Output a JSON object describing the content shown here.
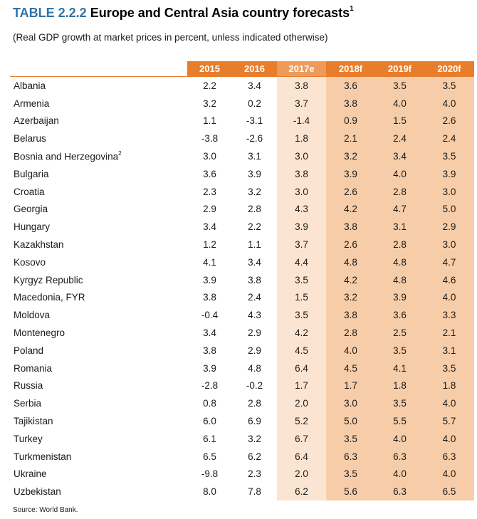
{
  "header": {
    "table_number": "TABLE 2.2.2",
    "title": "Europe and Central Asia country forecasts",
    "title_footnote": "1",
    "subtitle": "(Real GDP growth at market prices in percent, unless indicated otherwise)"
  },
  "table": {
    "columns": [
      "2015",
      "2016",
      "2017e",
      "2018f",
      "2019f",
      "2020f"
    ],
    "rows": [
      {
        "country": "Albania",
        "sup": "",
        "values": [
          "2.2",
          "3.4",
          "3.8",
          "3.6",
          "3.5",
          "3.5"
        ]
      },
      {
        "country": "Armenia",
        "sup": "",
        "values": [
          "3.2",
          "0.2",
          "3.7",
          "3.8",
          "4.0",
          "4.0"
        ]
      },
      {
        "country": "Azerbaijan",
        "sup": "",
        "values": [
          "1.1",
          "-3.1",
          "-1.4",
          "0.9",
          "1.5",
          "2.6"
        ]
      },
      {
        "country": "Belarus",
        "sup": "",
        "values": [
          "-3.8",
          "-2.6",
          "1.8",
          "2.1",
          "2.4",
          "2.4"
        ]
      },
      {
        "country": "Bosnia and Herzegovina",
        "sup": "2",
        "values": [
          "3.0",
          "3.1",
          "3.0",
          "3.2",
          "3.4",
          "3.5"
        ]
      },
      {
        "country": "Bulgaria",
        "sup": "",
        "values": [
          "3.6",
          "3.9",
          "3.8",
          "3.9",
          "4.0",
          "3.9"
        ]
      },
      {
        "country": "Croatia",
        "sup": "",
        "values": [
          "2.3",
          "3.2",
          "3.0",
          "2.6",
          "2.8",
          "3.0"
        ]
      },
      {
        "country": "Georgia",
        "sup": "",
        "values": [
          "2.9",
          "2.8",
          "4.3",
          "4.2",
          "4.7",
          "5.0"
        ]
      },
      {
        "country": "Hungary",
        "sup": "",
        "values": [
          "3.4",
          "2.2",
          "3.9",
          "3.8",
          "3.1",
          "2.9"
        ]
      },
      {
        "country": "Kazakhstan",
        "sup": "",
        "values": [
          "1.2",
          "1.1",
          "3.7",
          "2.6",
          "2.8",
          "3.0"
        ]
      },
      {
        "country": "Kosovo",
        "sup": "",
        "values": [
          "4.1",
          "3.4",
          "4.4",
          "4.8",
          "4.8",
          "4.7"
        ]
      },
      {
        "country": "Kyrgyz Republic",
        "sup": "",
        "values": [
          "3.9",
          "3.8",
          "3.5",
          "4.2",
          "4.8",
          "4.6"
        ]
      },
      {
        "country": "Macedonia, FYR",
        "sup": "",
        "values": [
          "3.8",
          "2.4",
          "1.5",
          "3.2",
          "3.9",
          "4.0"
        ]
      },
      {
        "country": "Moldova",
        "sup": "",
        "values": [
          "-0.4",
          "4.3",
          "3.5",
          "3.8",
          "3.6",
          "3.3"
        ]
      },
      {
        "country": "Montenegro",
        "sup": "",
        "values": [
          "3.4",
          "2.9",
          "4.2",
          "2.8",
          "2.5",
          "2.1"
        ]
      },
      {
        "country": "Poland",
        "sup": "",
        "values": [
          "3.8",
          "2.9",
          "4.5",
          "4.0",
          "3.5",
          "3.1"
        ]
      },
      {
        "country": "Romania",
        "sup": "",
        "values": [
          "3.9",
          "4.8",
          "6.4",
          "4.5",
          "4.1",
          "3.5"
        ]
      },
      {
        "country": "Russia",
        "sup": "",
        "values": [
          "-2.8",
          "-0.2",
          "1.7",
          "1.7",
          "1.8",
          "1.8"
        ]
      },
      {
        "country": "Serbia",
        "sup": "",
        "values": [
          "0.8",
          "2.8",
          "2.0",
          "3.0",
          "3.5",
          "4.0"
        ]
      },
      {
        "country": "Tajikistan",
        "sup": "",
        "values": [
          "6.0",
          "6.9",
          "5.2",
          "5.0",
          "5.5",
          "5.7"
        ]
      },
      {
        "country": "Turkey",
        "sup": "",
        "values": [
          "6.1",
          "3.2",
          "6.7",
          "3.5",
          "4.0",
          "4.0"
        ]
      },
      {
        "country": "Turkmenistan",
        "sup": "",
        "values": [
          "6.5",
          "6.2",
          "6.4",
          "6.3",
          "6.3",
          "6.3"
        ]
      },
      {
        "country": "Ukraine",
        "sup": "",
        "values": [
          "-9.8",
          "2.3",
          "2.0",
          "3.5",
          "4.0",
          "4.0"
        ]
      },
      {
        "country": "Uzbekistan",
        "sup": "",
        "values": [
          "8.0",
          "7.8",
          "6.2",
          "5.6",
          "6.3",
          "6.5"
        ]
      }
    ]
  },
  "footer": {
    "source": "Source: World Bank."
  },
  "colors": {
    "header_orange": "#e87d2c",
    "header_estimate": "#ed9a5b",
    "estimate_fill": "#fbe5d2",
    "forecast_fill": "#f7cda9",
    "title_blue": "#2f73a8"
  }
}
